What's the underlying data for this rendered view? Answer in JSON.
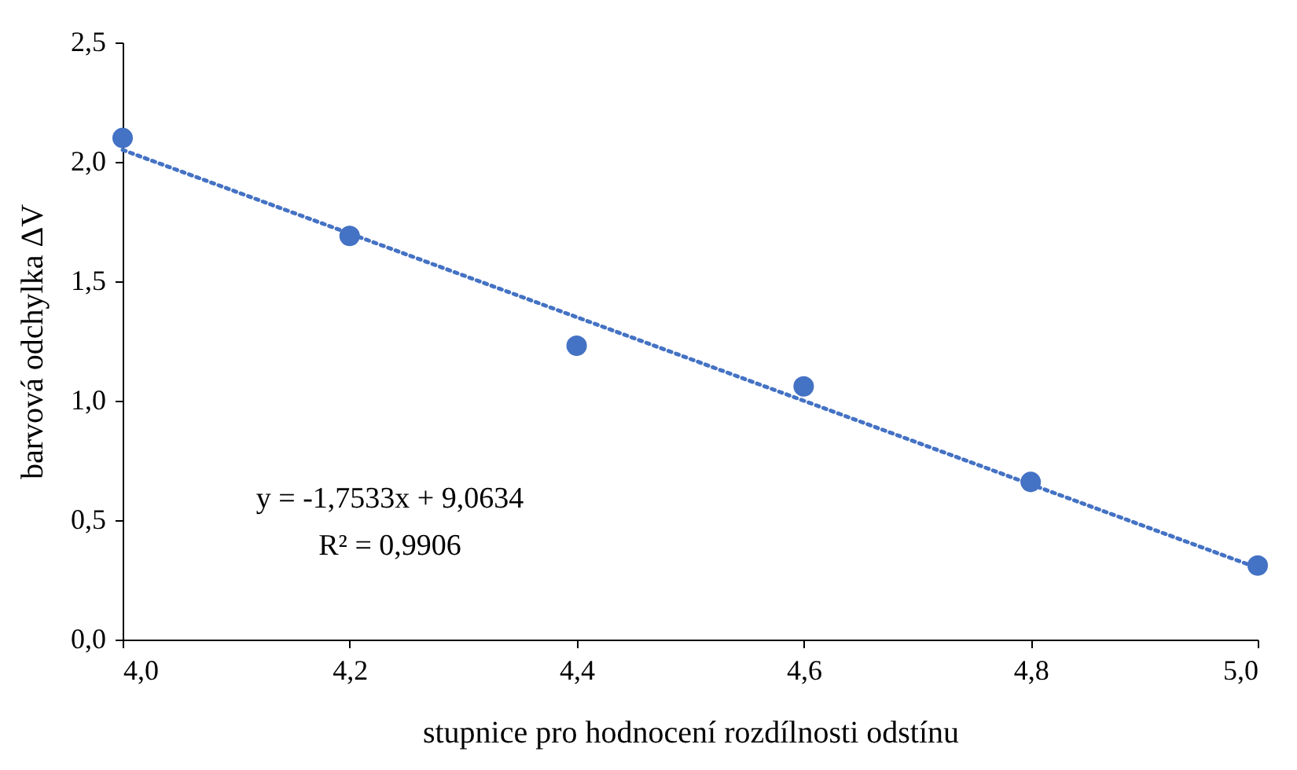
{
  "chart_data": {
    "type": "scatter",
    "xlabel": "stupnice pro hodnocení rozdílnosti odstínu",
    "ylabel": "barvová odchylka ΔV",
    "x": [
      4.0,
      4.2,
      4.4,
      4.6,
      4.8,
      5.0
    ],
    "series": [
      {
        "color": "#4472c4",
        "values": [
          2.1,
          1.69,
          1.23,
          1.06,
          0.66,
          0.31
        ],
        "marker": "circle"
      },
      {
        "type": "line",
        "color": "#4472c4",
        "x": [
          4.0,
          5.0
        ],
        "values": [
          2.05,
          0.3
        ],
        "line_style": "dotted",
        "marker": "none"
      }
    ],
    "xlim": [
      4.0,
      5.0
    ],
    "xticks": [
      {
        "value": 4.0,
        "label": "4,0"
      },
      {
        "value": 4.2,
        "label": "4,2"
      },
      {
        "value": 4.4,
        "label": "4,4"
      },
      {
        "value": 4.6,
        "label": "4,6"
      },
      {
        "value": 4.8,
        "label": "4,8"
      },
      {
        "value": 5.0,
        "label": "5,0"
      }
    ],
    "ylim": [
      0,
      2.5
    ],
    "yticks": [
      {
        "value": 0,
        "label": "0,0"
      },
      {
        "value": 0.5,
        "label": "0,5"
      },
      {
        "value": 1.0,
        "label": "1,0"
      },
      {
        "value": 1.5,
        "label": "1,5"
      },
      {
        "value": 2.0,
        "label": "2,0"
      },
      {
        "value": 2.5,
        "label": "2,5"
      }
    ],
    "annotations": [
      "y = -1,7533x + 9,0634",
      "R² = 0,9906"
    ],
    "grid": false
  }
}
